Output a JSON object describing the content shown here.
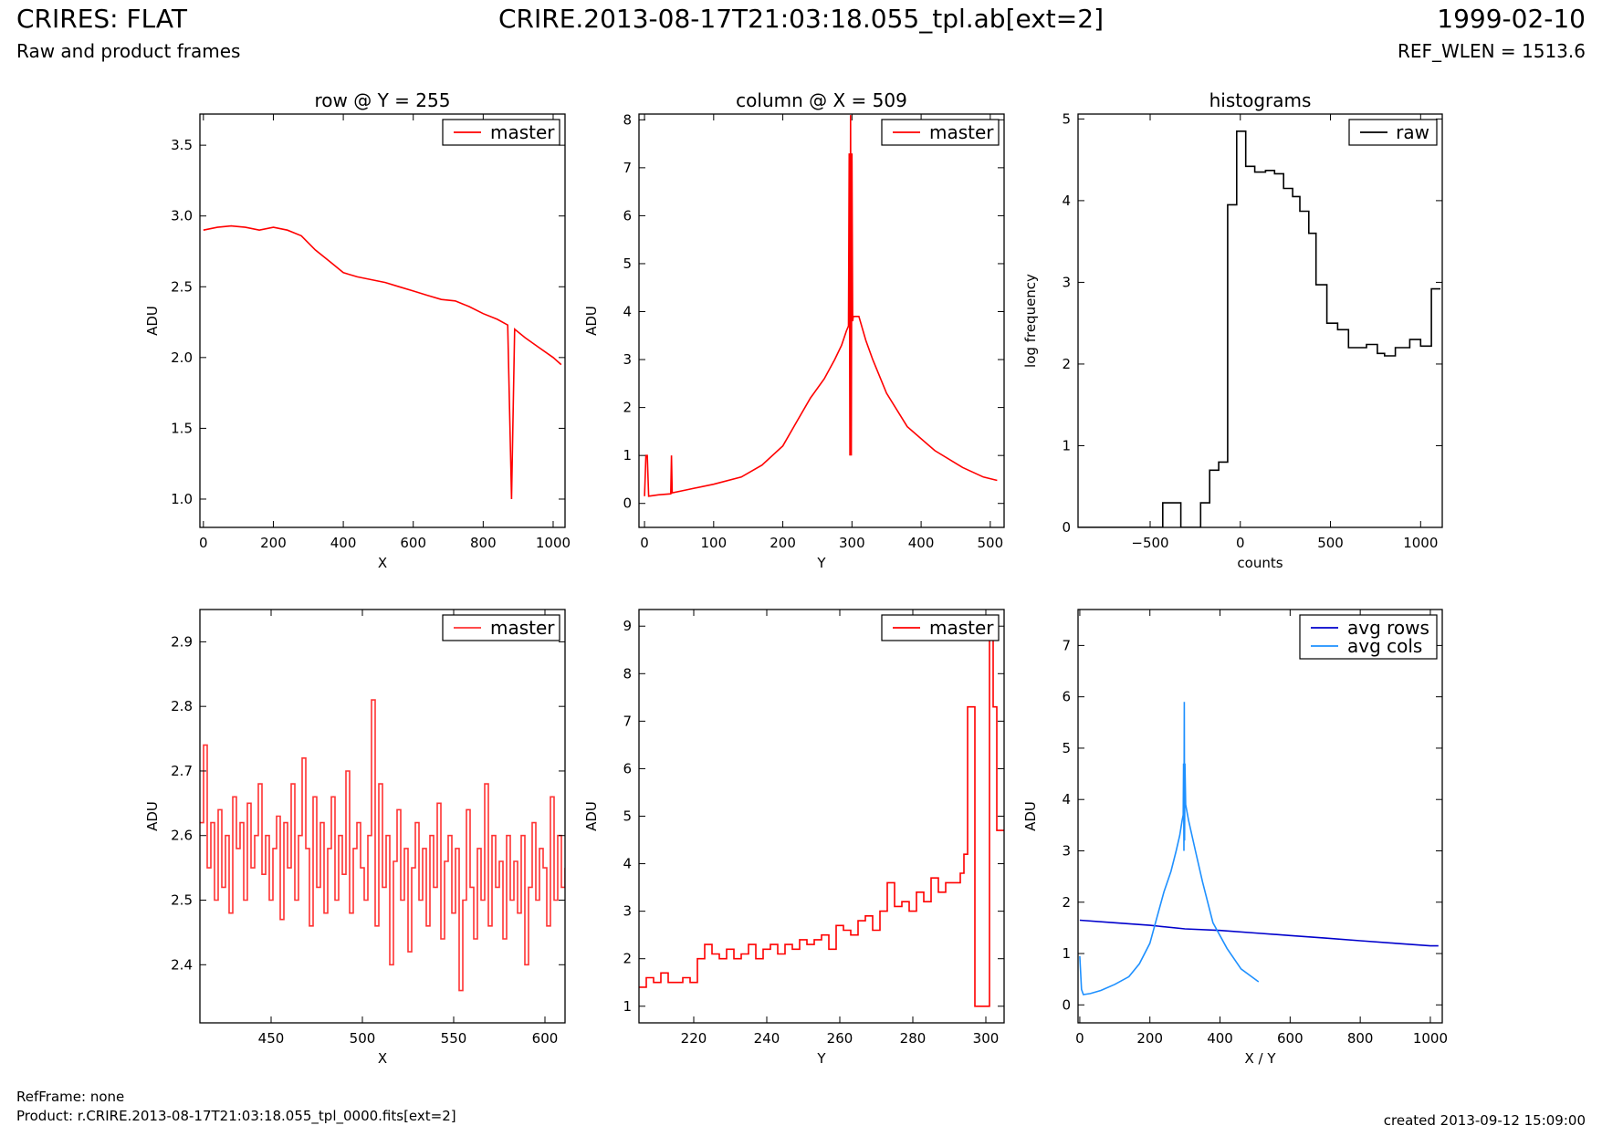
{
  "header": {
    "title": "CRIRES: FLAT",
    "subtitle": "Raw and product frames",
    "file": "CRIRE.2013-08-17T21:03:18.055_tpl.ab[ext=2]",
    "date": "1999-02-10",
    "ref_wlen": "REF_WLEN = 1513.6"
  },
  "footer": {
    "refframe": "RefFrame: none",
    "product": "Product: r.CRIRE.2013-08-17T21:03:18.055_tpl_0000.fits[ext=2]",
    "created": "created 2013-09-12 15:09:00"
  },
  "colors": {
    "red": "#ff0000",
    "light_red": "#ff3333",
    "black": "#000000",
    "blue": "#0000cc",
    "light_blue": "#1e90ff"
  },
  "chart_data": [
    {
      "id": "row",
      "type": "line",
      "title": "row @ Y = 255",
      "xlabel": "X",
      "ylabel": "ADU",
      "xlim": [
        -10,
        1034
      ],
      "ylim": [
        0.8,
        3.72
      ],
      "xticks": [
        0,
        200,
        400,
        600,
        800,
        1000
      ],
      "xtick_labels": [
        "0",
        "200",
        "400",
        "600",
        "800",
        "1000"
      ],
      "yticks": [
        1.0,
        1.5,
        2.0,
        2.5,
        3.0,
        3.5
      ],
      "ytick_labels": [
        "1.0",
        "1.5",
        "2.0",
        "2.5",
        "3.0",
        "3.5"
      ],
      "legend": "top-right",
      "series": [
        {
          "name": "master",
          "color": "#ff0000",
          "x": [
            0,
            40,
            80,
            120,
            160,
            200,
            240,
            280,
            320,
            360,
            400,
            440,
            480,
            520,
            560,
            600,
            640,
            680,
            720,
            760,
            800,
            840,
            870,
            881,
            890,
            920,
            960,
            1000,
            1023
          ],
          "y": [
            2.9,
            2.92,
            2.93,
            2.92,
            2.9,
            2.92,
            2.9,
            2.86,
            2.76,
            2.68,
            2.6,
            2.57,
            2.55,
            2.53,
            2.5,
            2.47,
            2.44,
            2.41,
            2.4,
            2.36,
            2.31,
            2.27,
            2.23,
            1.0,
            2.2,
            2.14,
            2.07,
            2.0,
            1.95
          ]
        }
      ]
    },
    {
      "id": "column",
      "type": "line",
      "title": "column @ X = 509",
      "xlabel": "Y",
      "ylabel": "ADU",
      "xlim": [
        -8,
        520
      ],
      "ylim": [
        -0.5,
        8.12
      ],
      "xticks": [
        0,
        100,
        200,
        300,
        400,
        500
      ],
      "xtick_labels": [
        "0",
        "100",
        "200",
        "300",
        "400",
        "500"
      ],
      "yticks": [
        0,
        1,
        2,
        3,
        4,
        5,
        6,
        7,
        8
      ],
      "ytick_labels": [
        "0",
        "1",
        "2",
        "3",
        "4",
        "5",
        "6",
        "7",
        "8"
      ],
      "legend": "top-right",
      "series": [
        {
          "name": "master",
          "color": "#ff0000",
          "x": [
            0,
            2,
            4,
            6,
            20,
            38,
            39,
            40,
            60,
            100,
            140,
            170,
            200,
            220,
            240,
            260,
            275,
            285,
            292,
            295,
            296,
            297,
            298,
            299,
            300,
            301,
            302,
            305,
            310,
            320,
            330,
            350,
            380,
            420,
            460,
            490,
            510
          ],
          "y": [
            0.15,
            1.0,
            1.0,
            0.15,
            0.18,
            0.2,
            1.0,
            0.22,
            0.28,
            0.4,
            0.55,
            0.8,
            1.2,
            1.7,
            2.2,
            2.6,
            3.0,
            3.3,
            3.6,
            3.7,
            7.3,
            1.0,
            8.1,
            1.0,
            7.3,
            3.8,
            3.9,
            3.9,
            3.9,
            3.4,
            3.0,
            2.3,
            1.6,
            1.1,
            0.75,
            0.55,
            0.48
          ]
        }
      ]
    },
    {
      "id": "histograms",
      "type": "line",
      "title": "histograms",
      "xlabel": "counts",
      "ylabel": "log frequency",
      "xlim": [
        -900,
        1120
      ],
      "ylim": [
        0,
        5.06
      ],
      "xticks": [
        -500,
        0,
        500,
        1000
      ],
      "xtick_labels": [
        "−500",
        "0",
        "500",
        "1000"
      ],
      "yticks": [
        0,
        1,
        2,
        3,
        4,
        5
      ],
      "ytick_labels": [
        "0",
        "1",
        "2",
        "3",
        "4",
        "5"
      ],
      "legend": "top-right",
      "series": [
        {
          "name": "raw",
          "color": "#000000",
          "step": true,
          "x": [
            -900,
            -430,
            -430,
            -330,
            -330,
            -220,
            -220,
            -170,
            -170,
            -120,
            -120,
            -70,
            -70,
            -20,
            -20,
            30,
            30,
            80,
            80,
            140,
            140,
            190,
            190,
            240,
            240,
            290,
            290,
            330,
            330,
            380,
            380,
            420,
            420,
            480,
            480,
            540,
            540,
            600,
            600,
            700,
            700,
            760,
            760,
            800,
            800,
            860,
            860,
            940,
            940,
            1000,
            1000,
            1060,
            1060,
            1110
          ],
          "y": [
            0,
            0,
            0.3,
            0.3,
            0,
            0,
            0.3,
            0.3,
            0.7,
            0.7,
            0.8,
            0.8,
            3.95,
            3.95,
            4.85,
            4.85,
            4.42,
            4.42,
            4.35,
            4.35,
            4.37,
            4.37,
            4.33,
            4.33,
            4.15,
            4.15,
            4.05,
            4.05,
            3.87,
            3.87,
            3.6,
            3.6,
            2.97,
            2.97,
            2.5,
            2.5,
            2.42,
            2.42,
            2.2,
            2.2,
            2.24,
            2.24,
            2.13,
            2.13,
            2.1,
            2.1,
            2.2,
            2.2,
            2.3,
            2.3,
            2.22,
            2.22,
            2.92,
            2.92
          ]
        }
      ]
    },
    {
      "id": "row-zoom",
      "type": "line",
      "xlabel": "X",
      "ylabel": "ADU",
      "xlim": [
        411,
        611
      ],
      "ylim": [
        2.31,
        2.95
      ],
      "xticks": [
        450,
        500,
        550,
        600
      ],
      "xtick_labels": [
        "450",
        "500",
        "550",
        "600"
      ],
      "yticks": [
        2.4,
        2.5,
        2.6,
        2.7,
        2.8,
        2.9
      ],
      "ytick_labels": [
        "2.4",
        "2.5",
        "2.6",
        "2.7",
        "2.8",
        "2.9"
      ],
      "legend": "top-right",
      "series": [
        {
          "name": "master",
          "color": "#ff3333",
          "step": true,
          "x": [
            411,
            413,
            415,
            417,
            419,
            421,
            423,
            425,
            427,
            429,
            431,
            433,
            435,
            437,
            439,
            441,
            443,
            445,
            447,
            449,
            451,
            453,
            455,
            457,
            459,
            461,
            463,
            465,
            467,
            469,
            471,
            473,
            475,
            477,
            479,
            481,
            483,
            485,
            487,
            489,
            491,
            493,
            495,
            497,
            499,
            501,
            503,
            505,
            507,
            509,
            511,
            513,
            515,
            517,
            519,
            521,
            523,
            525,
            527,
            529,
            531,
            533,
            535,
            537,
            539,
            541,
            543,
            545,
            547,
            549,
            551,
            553,
            555,
            557,
            559,
            561,
            563,
            565,
            567,
            569,
            571,
            573,
            575,
            577,
            579,
            581,
            583,
            585,
            587,
            589,
            591,
            593,
            595,
            597,
            599,
            601,
            603,
            605,
            607,
            609,
            611
          ],
          "y": [
            2.62,
            2.74,
            2.55,
            2.62,
            2.5,
            2.64,
            2.52,
            2.6,
            2.48,
            2.66,
            2.58,
            2.62,
            2.5,
            2.65,
            2.55,
            2.6,
            2.68,
            2.54,
            2.6,
            2.5,
            2.58,
            2.63,
            2.47,
            2.62,
            2.55,
            2.68,
            2.5,
            2.6,
            2.72,
            2.58,
            2.46,
            2.66,
            2.52,
            2.62,
            2.48,
            2.58,
            2.66,
            2.5,
            2.6,
            2.54,
            2.7,
            2.48,
            2.58,
            2.62,
            2.55,
            2.5,
            2.6,
            2.81,
            2.46,
            2.68,
            2.52,
            2.6,
            2.4,
            2.56,
            2.64,
            2.5,
            2.58,
            2.42,
            2.55,
            2.62,
            2.5,
            2.58,
            2.46,
            2.6,
            2.52,
            2.65,
            2.44,
            2.56,
            2.6,
            2.48,
            2.58,
            2.36,
            2.5,
            2.64,
            2.52,
            2.44,
            2.58,
            2.5,
            2.68,
            2.46,
            2.6,
            2.52,
            2.56,
            2.44,
            2.6,
            2.5,
            2.56,
            2.48,
            2.6,
            2.4,
            2.52,
            2.62,
            2.5,
            2.58,
            2.55,
            2.46,
            2.66,
            2.5,
            2.6,
            2.52,
            2.55
          ]
        }
      ]
    },
    {
      "id": "column-zoom",
      "type": "line",
      "xlabel": "Y",
      "ylabel": "ADU",
      "xlim": [
        205,
        305
      ],
      "ylim": [
        0.65,
        9.35
      ],
      "xticks": [
        220,
        240,
        260,
        280,
        300
      ],
      "xtick_labels": [
        "220",
        "240",
        "260",
        "280",
        "300"
      ],
      "yticks": [
        1,
        2,
        3,
        4,
        5,
        6,
        7,
        8,
        9
      ],
      "ytick_labels": [
        "1",
        "2",
        "3",
        "4",
        "5",
        "6",
        "7",
        "8",
        "9"
      ],
      "legend": "top-right",
      "series": [
        {
          "name": "master",
          "color": "#ff0000",
          "step": true,
          "x": [
            205,
            207,
            209,
            211,
            213,
            215,
            217,
            219,
            221,
            223,
            225,
            227,
            229,
            231,
            233,
            235,
            237,
            239,
            241,
            243,
            245,
            247,
            249,
            251,
            253,
            255,
            257,
            259,
            261,
            263,
            265,
            267,
            269,
            271,
            273,
            275,
            277,
            279,
            281,
            283,
            285,
            287,
            289,
            291,
            293,
            294,
            295,
            297,
            299,
            301,
            302,
            303,
            304,
            305
          ],
          "y": [
            1.4,
            1.6,
            1.5,
            1.7,
            1.5,
            1.5,
            1.6,
            1.5,
            2.0,
            2.3,
            2.1,
            2.0,
            2.2,
            2.0,
            2.1,
            2.3,
            2.0,
            2.2,
            2.3,
            2.1,
            2.3,
            2.2,
            2.4,
            2.3,
            2.4,
            2.5,
            2.2,
            2.7,
            2.6,
            2.5,
            2.8,
            2.9,
            2.6,
            3.0,
            3.6,
            3.1,
            3.2,
            3.0,
            3.4,
            3.2,
            3.7,
            3.4,
            3.6,
            3.6,
            3.8,
            4.2,
            7.3,
            1.0,
            1.0,
            9.2,
            7.3,
            4.7,
            4.7,
            4.7
          ]
        }
      ]
    },
    {
      "id": "averages",
      "type": "line",
      "xlabel": "X / Y",
      "ylabel": "ADU",
      "xlim": [
        -5,
        1034
      ],
      "ylim": [
        -0.35,
        7.7
      ],
      "xticks": [
        0,
        200,
        400,
        600,
        800,
        1000
      ],
      "xtick_labels": [
        "0",
        "200",
        "400",
        "600",
        "800",
        "1000"
      ],
      "yticks": [
        0,
        1,
        2,
        3,
        4,
        5,
        6,
        7
      ],
      "ytick_labels": [
        "0",
        "1",
        "2",
        "3",
        "4",
        "5",
        "6",
        "7"
      ],
      "legend": "top-right",
      "series": [
        {
          "name": "avg rows",
          "color": "#0000cc",
          "x": [
            0,
            100,
            200,
            300,
            400,
            500,
            600,
            700,
            800,
            900,
            1000,
            1023
          ],
          "y": [
            1.65,
            1.6,
            1.55,
            1.48,
            1.45,
            1.4,
            1.35,
            1.3,
            1.25,
            1.2,
            1.15,
            1.15
          ]
        },
        {
          "name": "avg cols",
          "color": "#1e90ff",
          "x": [
            0,
            5,
            10,
            30,
            60,
            100,
            140,
            170,
            200,
            220,
            240,
            260,
            275,
            285,
            292,
            295,
            296,
            297,
            298,
            299,
            300,
            302,
            310,
            330,
            350,
            380,
            420,
            460,
            490,
            510
          ],
          "y": [
            0.95,
            0.3,
            0.2,
            0.22,
            0.28,
            0.4,
            0.55,
            0.8,
            1.2,
            1.7,
            2.2,
            2.6,
            3.0,
            3.3,
            3.6,
            3.7,
            4.7,
            3.0,
            5.9,
            3.2,
            4.7,
            3.9,
            3.6,
            3.0,
            2.4,
            1.6,
            1.1,
            0.7,
            0.55,
            0.45
          ]
        }
      ]
    }
  ]
}
